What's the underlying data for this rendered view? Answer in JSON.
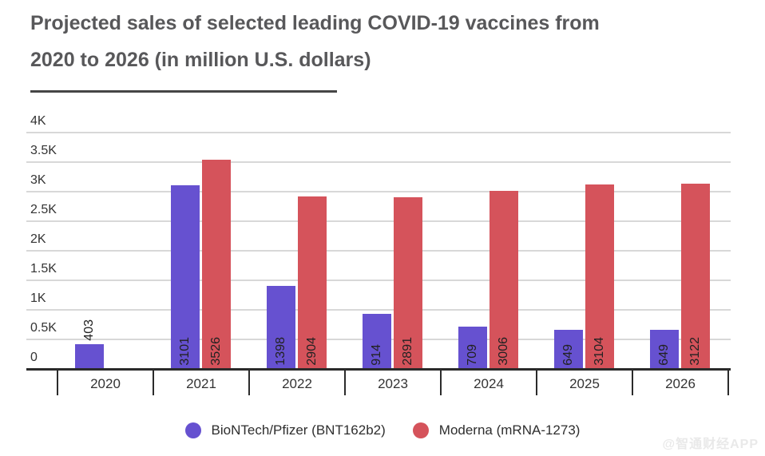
{
  "title": {
    "text": "Projected sales of selected leading COVID-19 vaccines from 2020 to 2026 (in million U.S. dollars)",
    "line1": "Projected sales of selected leading COVID-19 vaccines from",
    "line2": "2020 to 2026 (in million U.S. dollars)"
  },
  "watermark": "@智通财经APP",
  "colors": {
    "pfizer": "#6651D0",
    "moderna": "#D5535B",
    "gridline": "#D8D8D8",
    "axis": "#2B2B2B",
    "title_text": "#58585A",
    "tick_text": "#333333",
    "bar_label_text": "#222222",
    "watermark_text": "#E9E9E9"
  },
  "chart_data": {
    "type": "bar",
    "title": "Projected sales of selected leading COVID-19 vaccines from 2020 to 2026 (in million U.S. dollars)",
    "categories": [
      "2020",
      "2021",
      "2022",
      "2023",
      "2024",
      "2025",
      "2026"
    ],
    "series": [
      {
        "key": "pfizer",
        "name": "BioNTech/Pfizer (BNT162b2)",
        "color": "#6651D0",
        "values": [
          403,
          3101,
          1398,
          914,
          709,
          649,
          649
        ]
      },
      {
        "key": "moderna",
        "name": "Moderna (mRNA-1273)",
        "color": "#D5535B",
        "values": [
          null,
          3526,
          2904,
          2891,
          3006,
          3104,
          3122
        ]
      }
    ],
    "value_labels_shown": true,
    "y_ticks": [
      {
        "value": 0,
        "label": "0"
      },
      {
        "value": 500,
        "label": "0.5K"
      },
      {
        "value": 1000,
        "label": "1K"
      },
      {
        "value": 1500,
        "label": "1.5K"
      },
      {
        "value": 2000,
        "label": "2K"
      },
      {
        "value": 2500,
        "label": "2.5K"
      },
      {
        "value": 3000,
        "label": "3K"
      },
      {
        "value": 3500,
        "label": "3.5K"
      },
      {
        "value": 4000,
        "label": "4K"
      }
    ],
    "xlabel": "",
    "ylabel": "",
    "ylim": [
      0,
      4000
    ],
    "grid": true,
    "legend_position": "bottom"
  }
}
